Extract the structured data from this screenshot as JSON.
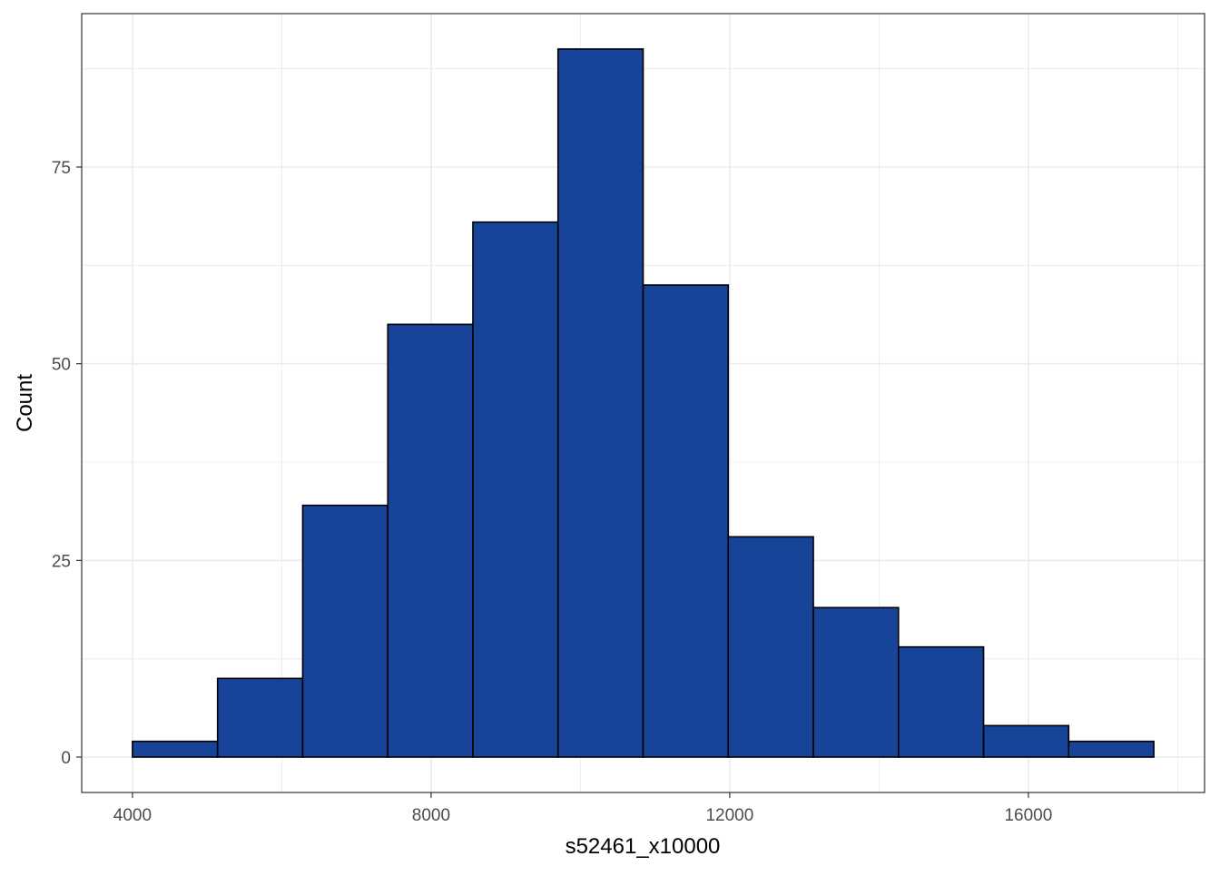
{
  "chart_data": {
    "type": "bar",
    "title": "",
    "xlabel": "s52461_x10000",
    "ylabel": "Count",
    "bin_width": 1140,
    "bins": [
      {
        "x0": 4000,
        "x1": 5140,
        "count": 2
      },
      {
        "x0": 5140,
        "x1": 6280,
        "count": 10
      },
      {
        "x0": 6280,
        "x1": 7420,
        "count": 32
      },
      {
        "x0": 7420,
        "x1": 8560,
        "count": 55
      },
      {
        "x0": 8560,
        "x1": 9700,
        "count": 68
      },
      {
        "x0": 9700,
        "x1": 10840,
        "count": 90
      },
      {
        "x0": 10840,
        "x1": 11980,
        "count": 60
      },
      {
        "x0": 11980,
        "x1": 13120,
        "count": 28
      },
      {
        "x0": 13120,
        "x1": 14260,
        "count": 19
      },
      {
        "x0": 14260,
        "x1": 15400,
        "count": 14
      },
      {
        "x0": 15400,
        "x1": 16540,
        "count": 4
      },
      {
        "x0": 16540,
        "x1": 17680,
        "count": 2
      }
    ],
    "xlim": [
      3320,
      18360
    ],
    "ylim": [
      -4.5,
      94.5
    ],
    "x_ticks": [
      "4000",
      "8000",
      "12000",
      "16000"
    ],
    "x_tick_values": [
      4000,
      8000,
      12000,
      16000
    ],
    "x_minor_values": [
      6000,
      10000,
      14000,
      18000
    ],
    "y_ticks": [
      "0",
      "25",
      "50",
      "75"
    ],
    "y_tick_values": [
      0,
      25,
      50,
      75
    ],
    "y_minor_values": [
      12.5,
      37.5,
      62.5,
      87.5
    ],
    "grid": true,
    "legend": "none",
    "bar_fill": "#174499",
    "bar_stroke": "#000000",
    "grid_color": "#ebebeb",
    "panel_border": "#333333"
  }
}
